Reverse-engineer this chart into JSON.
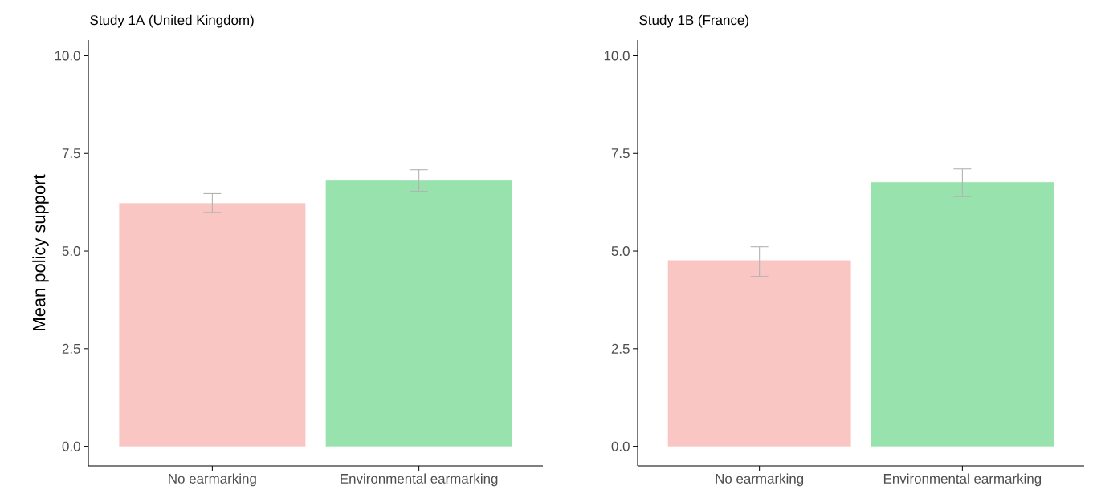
{
  "chart_data": [
    {
      "type": "bar",
      "title": "Study 1A (United Kingdom)",
      "ylabel": "Mean policy support",
      "categories": [
        "No earmarking",
        "Environmental earmarking"
      ],
      "values": [
        6.22,
        6.8
      ],
      "colors": [
        "#f9c6c3",
        "#98e2ae"
      ],
      "errors": [
        [
          5.99,
          6.47
        ],
        [
          6.53,
          7.08
        ]
      ],
      "ylim": [
        -0.5,
        10.4
      ],
      "yticks": [
        {
          "value": 0,
          "label": "0.0"
        },
        {
          "value": 2.5,
          "label": "2.5"
        },
        {
          "value": 5,
          "label": "5.0"
        },
        {
          "value": 7.5,
          "label": "7.5"
        },
        {
          "value": 10,
          "label": "10.0"
        }
      ]
    },
    {
      "type": "bar",
      "title": "Study 1B (France)",
      "categories": [
        "No earmarking",
        "Environmental earmarking"
      ],
      "values": [
        4.76,
        6.76
      ],
      "colors": [
        "#f9c6c3",
        "#98e2ae"
      ],
      "errors": [
        [
          4.35,
          5.11
        ],
        [
          6.39,
          7.1
        ]
      ],
      "ylim": [
        -0.5,
        10.4
      ],
      "yticks": [
        {
          "value": 0,
          "label": "0.0"
        },
        {
          "value": 2.5,
          "label": "2.5"
        },
        {
          "value": 5,
          "label": "5.0"
        },
        {
          "value": 7.5,
          "label": "7.5"
        },
        {
          "value": 10,
          "label": "10.0"
        }
      ]
    }
  ]
}
